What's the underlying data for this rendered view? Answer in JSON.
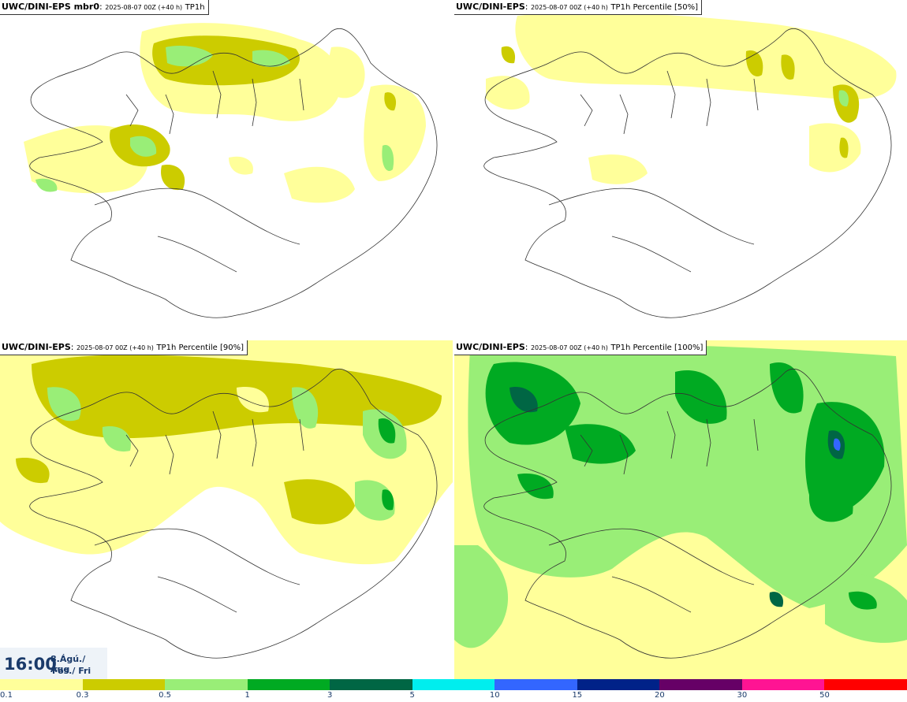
{
  "panels": [
    {
      "model": "UWC/DINI-EPS",
      "suffix": " mbr0",
      "run": "2025-08-07 00Z (+40 h)",
      "desc": "TP1h"
    },
    {
      "model": "UWC/DINI-EPS",
      "suffix": "",
      "run": "2025-08-07 00Z (+40 h)",
      "desc": "TP1h Percentile [50%]"
    },
    {
      "model": "UWC/DINI-EPS",
      "suffix": "",
      "run": "2025-08-07 00Z (+40 h)",
      "desc": "TP1h Percentile [90%]"
    },
    {
      "model": "UWC/DINI-EPS",
      "suffix": "",
      "run": "2025-08-07 00Z (+40 h)",
      "desc": "TP1h Percentile [100%]"
    }
  ],
  "valid_time": {
    "time": "16:00",
    "date_line1": "8.Ágú./ Aug",
    "date_line2": "Fös./ Fri"
  },
  "legend": {
    "colors": [
      "#ffff9a",
      "#cccc00",
      "#99ee77",
      "#00aa22",
      "#006644",
      "#00eeee",
      "#3366ff",
      "#002288",
      "#660066",
      "#ff1493",
      "#ff0000"
    ],
    "labels": [
      "0.1",
      "0.3",
      "0.5",
      "1",
      "3",
      "5",
      "10",
      "15",
      "20",
      "30",
      "50"
    ]
  },
  "palette": {
    "land_outline": "#333333",
    "background": "#ffffff"
  }
}
